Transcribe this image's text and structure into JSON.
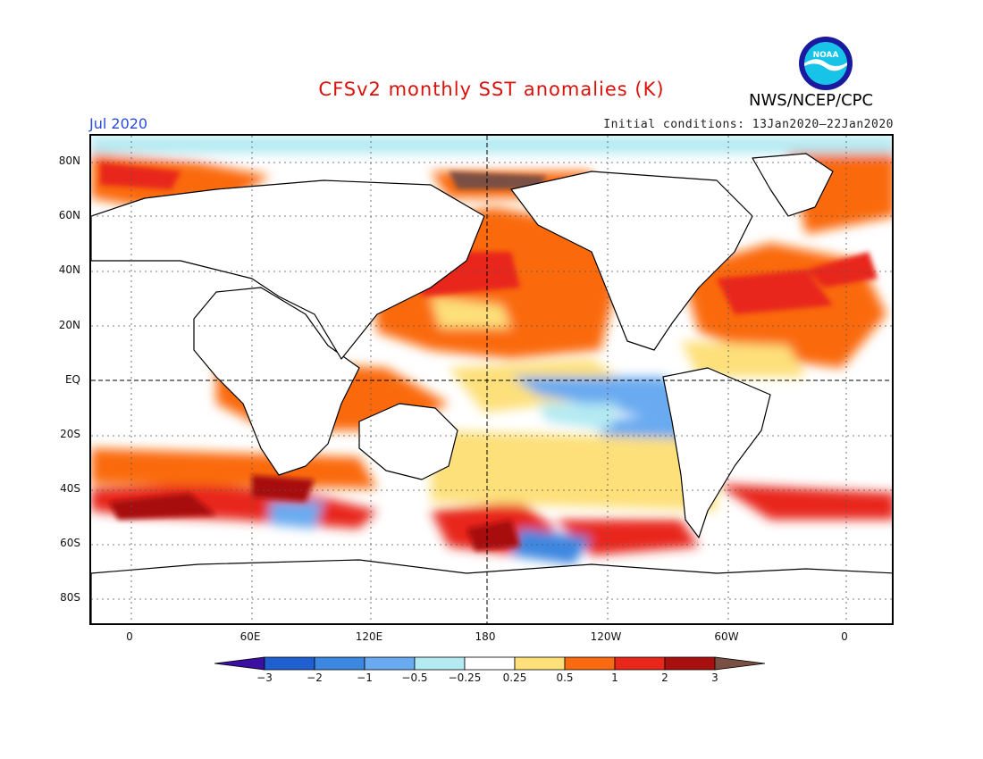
{
  "title": "CFSv2 monthly SST anomalies (K)",
  "month": "Jul 2020",
  "initial_conditions": "Initial conditions: 13Jan2020–22Jan2020",
  "org": "NWS/NCEP/CPC",
  "logo_text": "NOAA",
  "lat_labels": [
    "80N",
    "60N",
    "40N",
    "20N",
    "EQ",
    "20S",
    "40S",
    "60S",
    "80S"
  ],
  "lon_labels": [
    "0",
    "60E",
    "120E",
    "180",
    "120W",
    "60W",
    "0"
  ],
  "colorbar": {
    "labels": [
      "−3",
      "−2",
      "−1",
      "−0.5",
      "−0.25",
      "0.25",
      "0.5",
      "1",
      "2",
      "3"
    ],
    "colors": [
      "#3b0fa0",
      "#1f5fd0",
      "#3c87e0",
      "#6aaaf0",
      "#b4eaf2",
      "#ffffff",
      "#fde07a",
      "#fa6a10",
      "#e8261a",
      "#a80f0f",
      "#7a5044"
    ]
  }
}
